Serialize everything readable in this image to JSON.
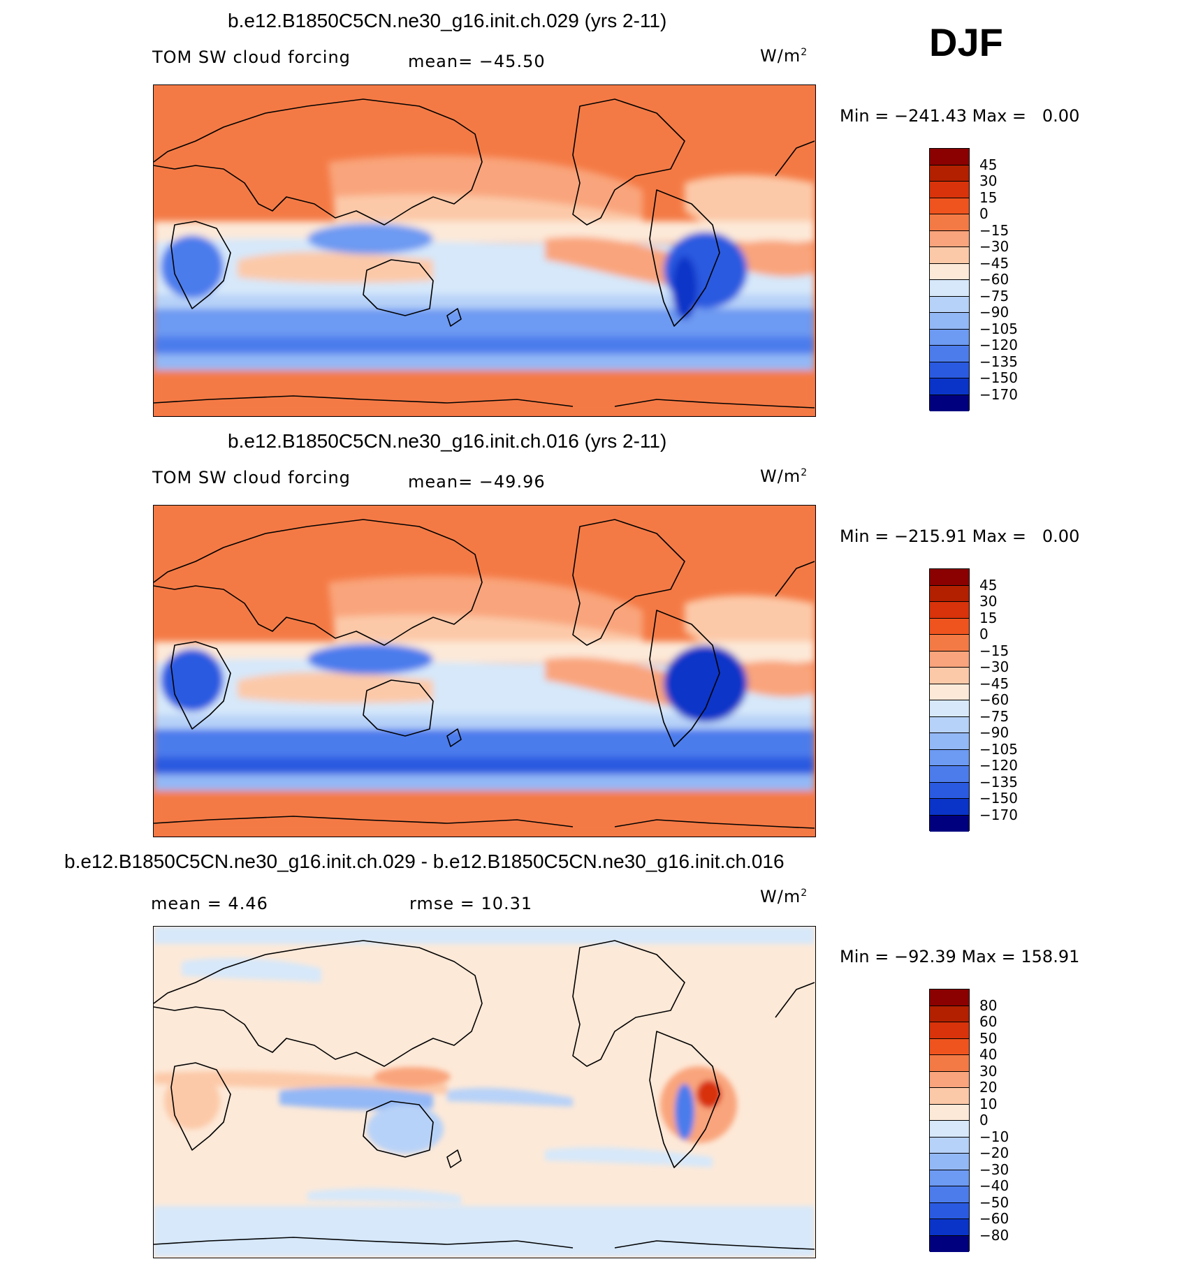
{
  "season": "DJF",
  "units_text": "W/m",
  "units_sup": "2",
  "panel1": {
    "title": "b.e12.B1850C5CN.ne30_g16.init.ch.029 (yrs 2-11)",
    "variable": "TOM SW cloud forcing",
    "mean_text": "mean= −45.50",
    "minmax_text": "Min = −241.43 Max =   0.00"
  },
  "panel2": {
    "title": "b.e12.B1850C5CN.ne30_g16.init.ch.016 (yrs 2-11)",
    "variable": "TOM SW cloud forcing",
    "mean_text": "mean= −49.96",
    "minmax_text": "Min = −215.91 Max =   0.00"
  },
  "panel3": {
    "title": "b.e12.B1850C5CN.ne30_g16.init.ch.029 - b.e12.B1850C5CN.ne30_g16.init.ch.016",
    "mean_text": "mean =   4.46",
    "rmse_text": "rmse =  10.31",
    "minmax_text": "Min = −92.39 Max = 158.91"
  },
  "colorbar_abs": {
    "labels": [
      "45",
      "30",
      "15",
      "0",
      "−15",
      "−30",
      "−45",
      "−60",
      "−75",
      "−90",
      "−105",
      "−120",
      "−135",
      "−150",
      "−170"
    ],
    "colors": [
      "#8B0000",
      "#B22000",
      "#D8330A",
      "#F0541E",
      "#F47A45",
      "#F9A47C",
      "#FCC9A8",
      "#FDE9D8",
      "#D6E8FA",
      "#B7D2F8",
      "#93B8F6",
      "#6D9AF2",
      "#4C7CEC",
      "#2A5AE0",
      "#0A34C8",
      "#00007E"
    ]
  },
  "colorbar_diff": {
    "labels": [
      "80",
      "60",
      "50",
      "40",
      "30",
      "20",
      "10",
      "0",
      "−10",
      "−20",
      "−30",
      "−40",
      "−50",
      "−60",
      "−80"
    ],
    "colors": [
      "#8B0000",
      "#B22000",
      "#D8330A",
      "#F0541E",
      "#F47A45",
      "#F9A47C",
      "#FCC9A8",
      "#FDE9D8",
      "#D6E8FA",
      "#B7D2F8",
      "#93B8F6",
      "#6D9AF2",
      "#4C7CEC",
      "#2A5AE0",
      "#0A34C8",
      "#00007E"
    ]
  }
}
